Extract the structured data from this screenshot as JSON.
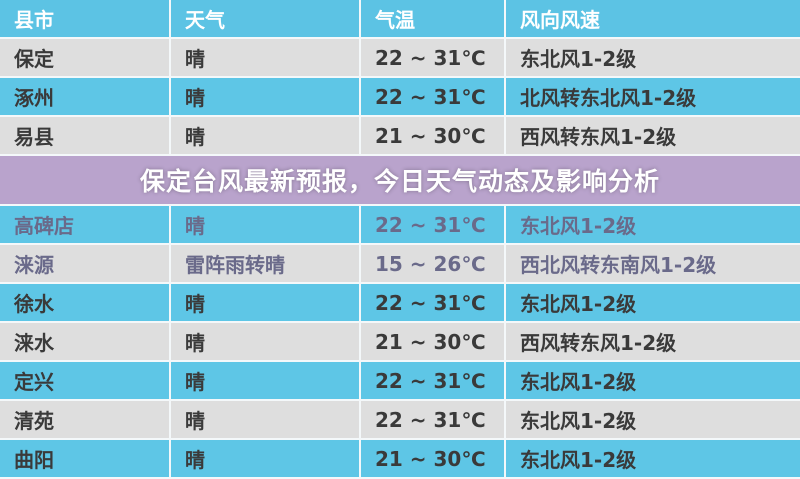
{
  "title": "保定台风最新预报，今日天气动态及影响分析",
  "headers": [
    "县市",
    "天气",
    "气温",
    "风向风速"
  ],
  "rows": [
    [
      "保定",
      "晴",
      "22 ~ 31℃",
      "东北风1-2级"
    ],
    [
      "涿州",
      "晴",
      "22 ~ 31℃",
      "北风转东北风1-2级"
    ],
    [
      "易县",
      "晴",
      "21 ~ 30℃",
      "西风转东风1-2级"
    ],
    [
      "高碑店",
      "晴",
      "22 ~ 31℃",
      "东北风1-2级"
    ],
    [
      "涞源",
      "雷阵雨转晴",
      "15 ~ 26℃",
      "西北风转东南风1-2级"
    ],
    [
      "徐水",
      "晴",
      "22 ~ 31℃",
      "东北风1-2级"
    ],
    [
      "涞水",
      "晴",
      "21 ~ 30℃",
      "西风转东风1-2级"
    ],
    [
      "定兴",
      "晴",
      "22 ~ 31℃",
      "东北风1-2级"
    ],
    [
      "清苑",
      "晴",
      "22 ~ 31℃",
      "东北风1-2级"
    ],
    [
      "曲阳",
      "晴",
      "21 ~ 30℃",
      "东北风1-2级"
    ]
  ],
  "colors": {
    "header": "#5cc3e4",
    "row_gray": "#dedede",
    "row_blue": "#5ec6e6",
    "overlay": "#c8aad7"
  }
}
